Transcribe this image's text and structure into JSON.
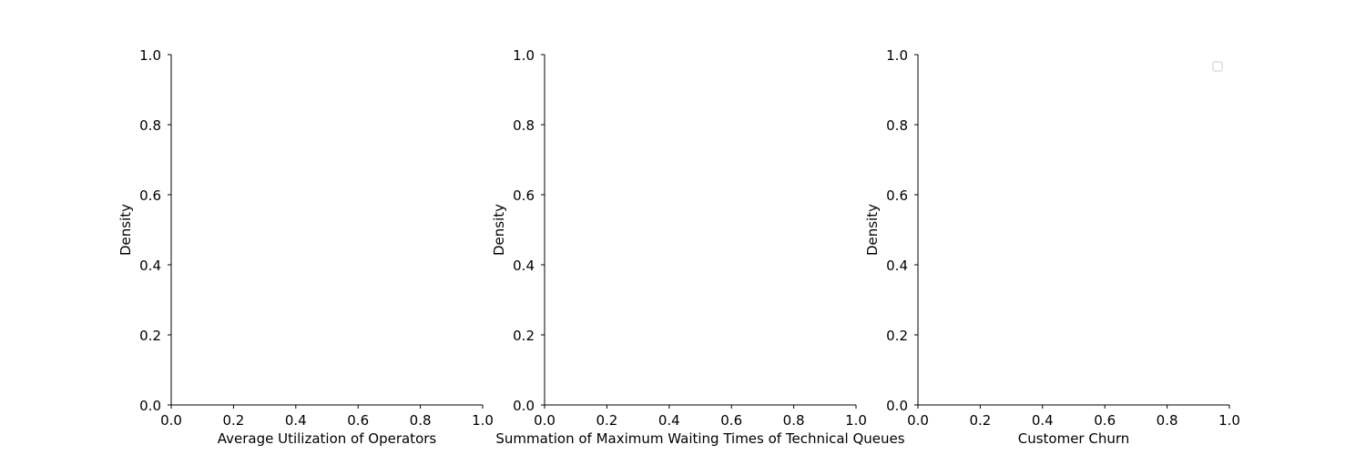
{
  "chart_data": [
    {
      "type": "line",
      "series": [],
      "xlabel": "Average Utilization of Operators",
      "ylabel": "Density",
      "xlim": [
        0,
        1
      ],
      "ylim": [
        0,
        1
      ],
      "xticks": [
        "0.0",
        "0.2",
        "0.4",
        "0.6",
        "0.8",
        "1.0"
      ],
      "yticks": [
        "0.0",
        "0.2",
        "0.4",
        "0.6",
        "0.8",
        "1.0"
      ],
      "grid": false,
      "legend": null
    },
    {
      "type": "line",
      "series": [],
      "xlabel": "Summation of Maximum Waiting Times of Technical Queues",
      "ylabel": "Density",
      "xlim": [
        0,
        1
      ],
      "ylim": [
        0,
        1
      ],
      "xticks": [
        "0.0",
        "0.2",
        "0.4",
        "0.6",
        "0.8",
        "1.0"
      ],
      "yticks": [
        "0.0",
        "0.2",
        "0.4",
        "0.6",
        "0.8",
        "1.0"
      ],
      "grid": false,
      "legend": null
    },
    {
      "type": "line",
      "series": [],
      "xlabel": "Customer Churn",
      "ylabel": "Density",
      "xlim": [
        0,
        1
      ],
      "ylim": [
        0,
        1
      ],
      "xticks": [
        "0.0",
        "0.2",
        "0.4",
        "0.6",
        "0.8",
        "1.0"
      ],
      "yticks": [
        "0.0",
        "0.2",
        "0.4",
        "0.6",
        "0.8",
        "1.0"
      ],
      "grid": false,
      "legend": "upper right"
    }
  ],
  "colors": {
    "axis": "#000000",
    "text": "#000000",
    "legend_border": "#cccccc",
    "background": "#ffffff"
  }
}
